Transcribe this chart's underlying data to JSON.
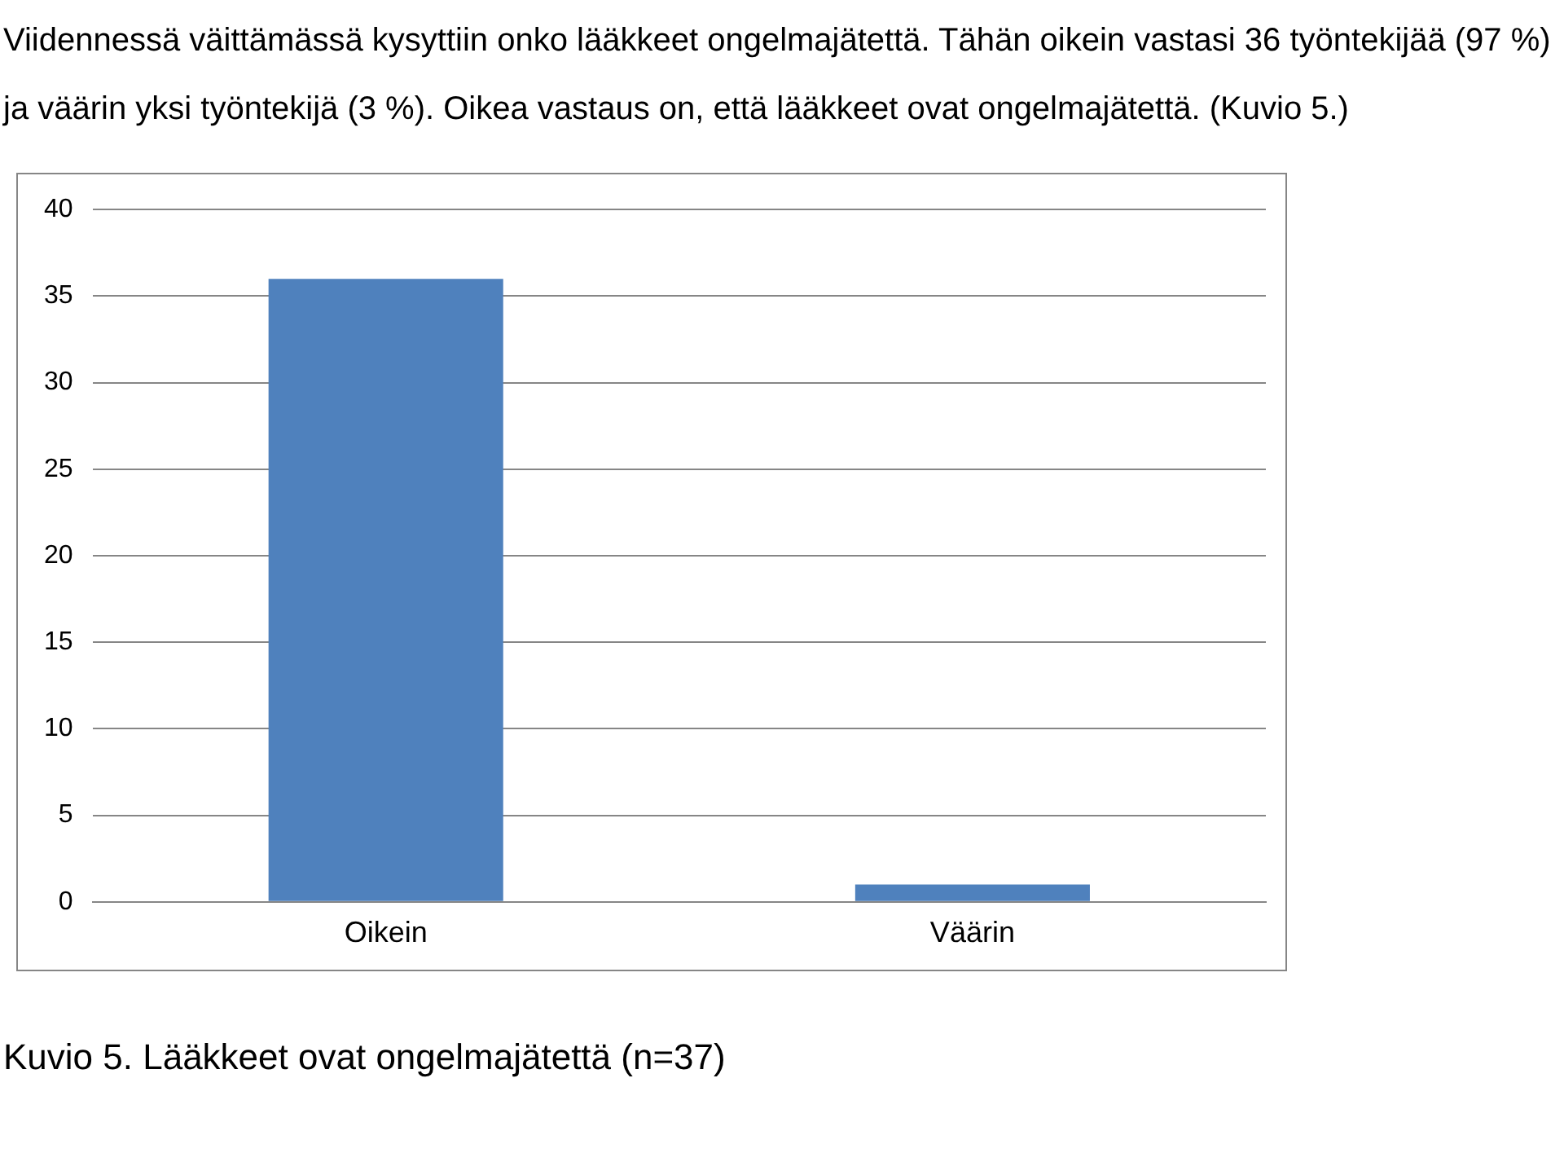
{
  "chart_data": {
    "type": "bar",
    "categories": [
      "Oikein",
      "Väärin"
    ],
    "values": [
      36,
      1
    ],
    "color": "#4f81bd",
    "ylim": [
      0,
      40
    ],
    "yticks": [
      0,
      5,
      10,
      15,
      20,
      25,
      30,
      35,
      40
    ],
    "grid": "y",
    "legend": false,
    "annotations": [
      "Viidennessä väittämässä kysyttiin onko lääkkeet ongelmajätettä. Tähän oikein vastasi 36 työntekijää (97 %) ja väärin yksi työntekijä (3 %). Oikea vastaus on, että lääkkeet ovat ongelmajätettä. (Kuvio 5.)",
      "Kuvio 5. Lääkkeet ovat ongelmajätettä (n=37)"
    ]
  }
}
